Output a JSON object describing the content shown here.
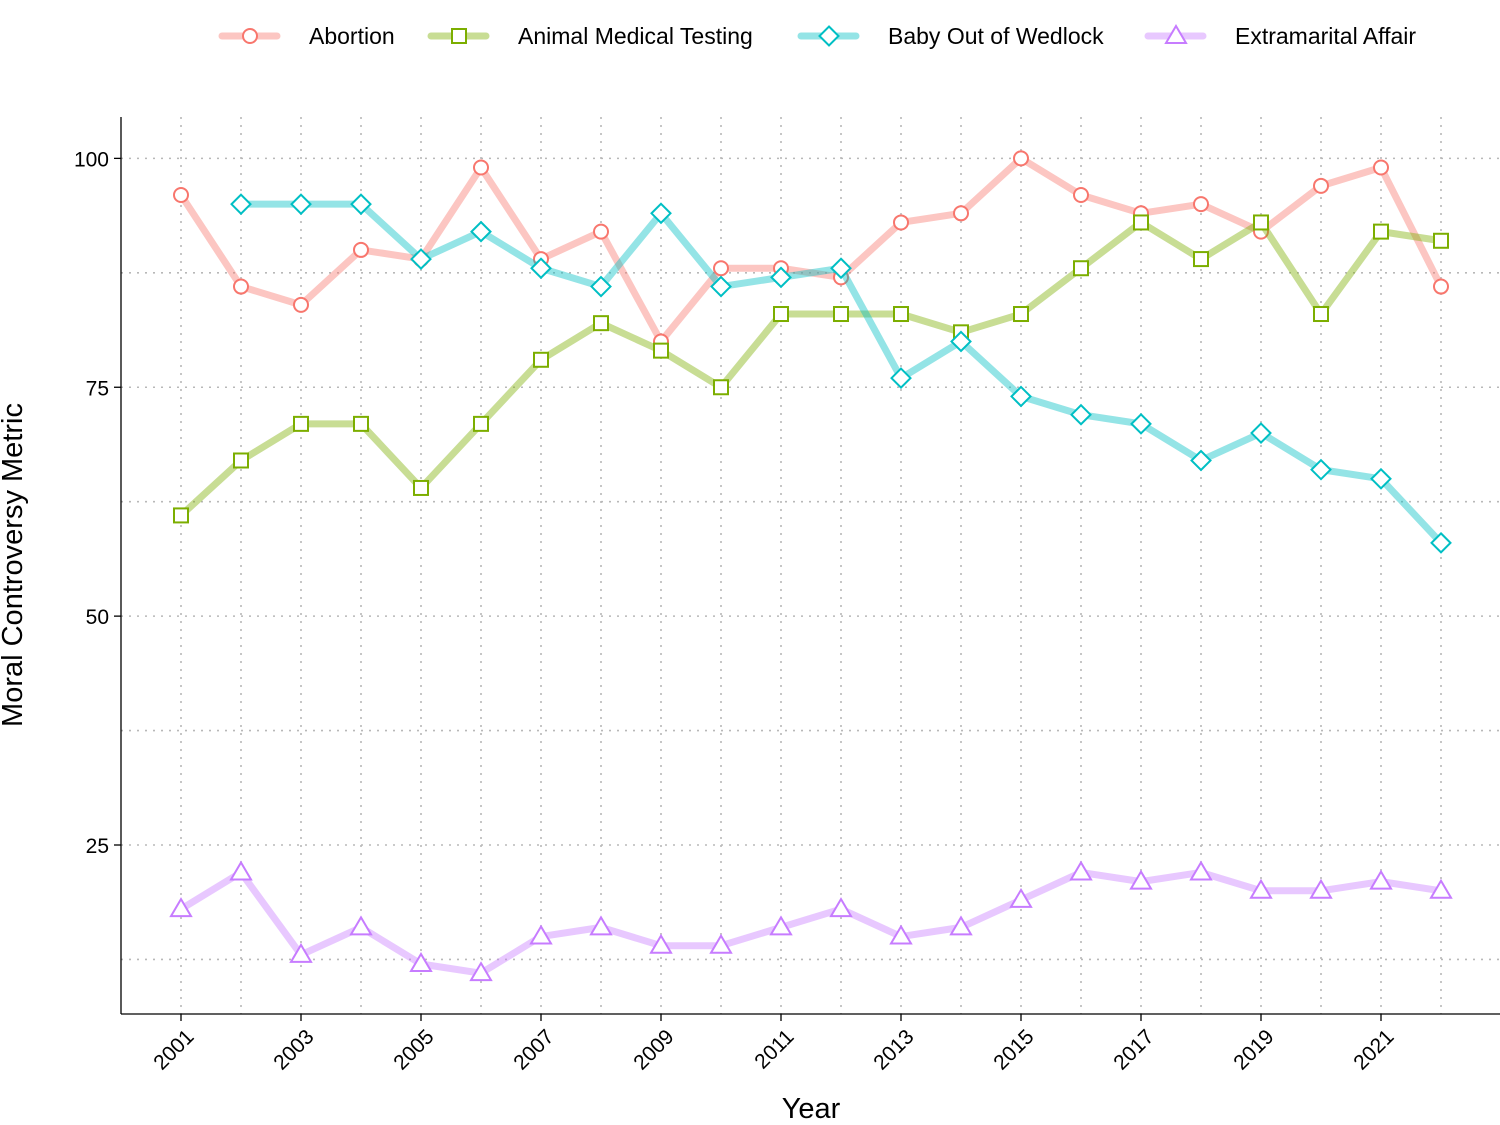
{
  "chart_data": {
    "type": "line",
    "title": "",
    "xlabel": "Year",
    "ylabel": "Moral Controversy Metric",
    "x": [
      2001,
      2002,
      2003,
      2004,
      2005,
      2006,
      2007,
      2008,
      2009,
      2010,
      2011,
      2012,
      2013,
      2014,
      2015,
      2016,
      2017,
      2018,
      2019,
      2020,
      2021,
      2022
    ],
    "xticks": [
      2001,
      2003,
      2005,
      2007,
      2009,
      2011,
      2013,
      2015,
      2017,
      2019,
      2021
    ],
    "yticks": [
      25,
      50,
      75,
      100
    ],
    "ylim": [
      7.5,
      104.5
    ],
    "xlim": [
      2000,
      2023
    ],
    "grid": true,
    "legend_position": "top",
    "series": [
      {
        "name": "Abortion",
        "color": "#F8766D",
        "marker": "circle",
        "values": [
          96,
          86,
          84,
          90,
          89,
          99,
          89,
          92,
          80,
          88,
          88,
          87,
          93,
          94,
          100,
          96,
          94,
          95,
          92,
          97,
          99,
          86
        ]
      },
      {
        "name": "Animal Medical Testing",
        "color": "#7CAE00",
        "marker": "square",
        "values": [
          61,
          67,
          71,
          71,
          64,
          71,
          78,
          82,
          79,
          75,
          83,
          83,
          83,
          81,
          83,
          88,
          93,
          89,
          93,
          83,
          92,
          91
        ]
      },
      {
        "name": "Baby Out of Wedlock",
        "color": "#00BFC4",
        "marker": "diamond",
        "values": [
          null,
          95,
          95,
          95,
          89,
          92,
          88,
          86,
          94,
          86,
          87,
          88,
          76,
          80,
          74,
          72,
          71,
          67,
          70,
          66,
          65,
          58
        ]
      },
      {
        "name": "Extramarital Affair",
        "color": "#C77CFF",
        "marker": "triangle",
        "values": [
          18,
          22,
          13,
          16,
          12,
          11,
          15,
          16,
          14,
          14,
          16,
          18,
          15,
          16,
          19,
          22,
          21,
          22,
          20,
          20,
          21,
          20
        ]
      }
    ]
  }
}
